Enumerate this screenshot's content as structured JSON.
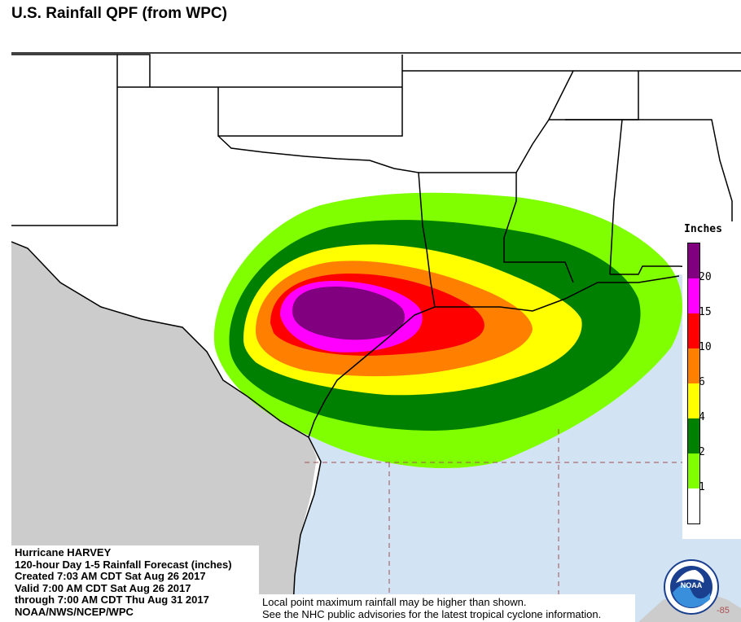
{
  "header": {
    "title": "U.S. Rainfall QPF (from WPC)"
  },
  "info": {
    "lines": [
      "Hurricane HARVEY",
      "120-hour Day 1-5 Rainfall Forecast (inches)",
      "Created 7:03 AM CDT Sat Aug 26 2017",
      "Valid 7:00 AM CDT Sat Aug 26 2017",
      "through 7:00 AM CDT Thu Aug 31 2017",
      "NOAA/NWS/NCEP/WPC"
    ]
  },
  "note": {
    "line1": "Local point maximum rainfall may be higher than shown.",
    "line2": "See the NHC public advisories for the latest tropical cyclone information."
  },
  "legend": {
    "title": "Inches",
    "ticks": [
      "20",
      "15",
      "10",
      "6",
      "4",
      "2",
      "1"
    ],
    "colors": [
      "#800080",
      "#ff00ff",
      "#ff0000",
      "#ff8000",
      "#ffff00",
      "#008000",
      "#80ff00",
      "#ffffff"
    ]
  },
  "map_colors": {
    "land_outside_us": "#cccccc",
    "water": "#d2e4f4",
    "us_land": "#ffffff",
    "boundary": "#000000",
    "grid": "#a05050"
  },
  "logo": {
    "text": "NOAA",
    "icon": "noaa-logo-icon"
  },
  "lon_label": "-85"
}
